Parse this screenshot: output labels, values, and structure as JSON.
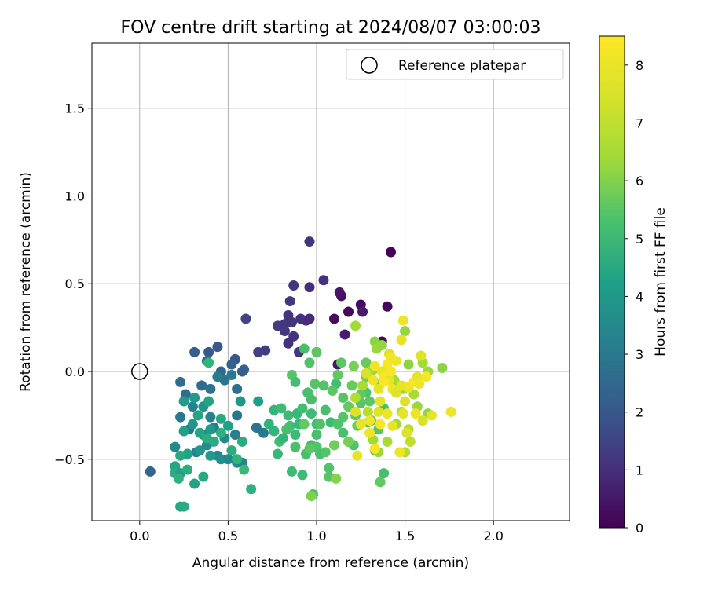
{
  "chart_data": {
    "type": "scatter",
    "title": "FOV centre drift starting at 2024/08/07 03:00:03",
    "xlabel": "Angular distance from reference (arcmin)",
    "ylabel": "Rotation from reference (arcmin)",
    "xlim": [
      -0.27,
      2.43
    ],
    "ylim": [
      -0.85,
      1.87
    ],
    "xticks": [
      0.0,
      0.5,
      1.0,
      1.5,
      2.0
    ],
    "yticks": [
      -0.5,
      0.0,
      0.5,
      1.0,
      1.5
    ],
    "xtick_labels": [
      "0.0",
      "0.5",
      "1.0",
      "1.5",
      "2.0"
    ],
    "ytick_labels": [
      "−0.5",
      "0.0",
      "0.5",
      "1.0",
      "1.5"
    ],
    "grid": true,
    "legend": {
      "position": "top-right",
      "entries": [
        "Reference platepar"
      ]
    },
    "reference_point": {
      "x": 0.0,
      "y": 0.0
    },
    "colorbar": {
      "label": "Hours from first FF file",
      "range": [
        0,
        8.5
      ],
      "ticks": [
        0,
        1,
        2,
        3,
        4,
        5,
        6,
        7,
        8
      ],
      "tick_labels": [
        "0",
        "1",
        "2",
        "3",
        "4",
        "5",
        "6",
        "7",
        "8"
      ],
      "colormap": "viridis"
    },
    "points": [
      [
        1.42,
        0.68,
        0.1
      ],
      [
        1.4,
        0.37,
        0.15
      ],
      [
        1.37,
        0.17,
        0.1
      ],
      [
        1.18,
        0.34,
        0.2
      ],
      [
        1.14,
        0.43,
        0.4
      ],
      [
        1.13,
        0.45,
        0.5
      ],
      [
        1.1,
        0.3,
        0.3
      ],
      [
        1.25,
        0.38,
        0.3
      ],
      [
        1.26,
        0.34,
        0.6
      ],
      [
        1.16,
        0.21,
        0.7
      ],
      [
        1.12,
        0.04,
        0.5
      ],
      [
        0.96,
        0.74,
        1.3
      ],
      [
        1.04,
        0.52,
        1.2
      ],
      [
        0.96,
        0.48,
        1.1
      ],
      [
        0.87,
        0.49,
        1.3
      ],
      [
        0.85,
        0.4,
        1.4
      ],
      [
        0.84,
        0.32,
        1.3
      ],
      [
        0.91,
        0.3,
        1.2
      ],
      [
        0.94,
        0.29,
        1.1
      ],
      [
        0.96,
        0.3,
        1.0
      ],
      [
        0.78,
        0.26,
        1.5
      ],
      [
        0.82,
        0.27,
        1.4
      ],
      [
        0.86,
        0.28,
        1.3
      ],
      [
        0.87,
        0.2,
        1.3
      ],
      [
        0.84,
        0.16,
        1.2
      ],
      [
        0.9,
        0.11,
        1.4
      ],
      [
        0.71,
        0.12,
        1.5
      ],
      [
        0.67,
        0.11,
        1.6
      ],
      [
        0.6,
        0.3,
        1.7
      ],
      [
        0.82,
        0.23,
        1.4
      ],
      [
        0.44,
        0.14,
        2.3
      ],
      [
        0.39,
        0.11,
        2.4
      ],
      [
        0.31,
        0.11,
        2.5
      ],
      [
        0.54,
        0.07,
        2.3
      ],
      [
        0.52,
        0.04,
        2.6
      ],
      [
        0.59,
        0.01,
        2.7
      ],
      [
        0.58,
        0.0,
        2.5
      ],
      [
        0.46,
        0.0,
        2.8
      ],
      [
        0.38,
        0.06,
        2.9
      ],
      [
        0.06,
        -0.57,
        2.8
      ],
      [
        0.26,
        -0.13,
        3.0
      ],
      [
        0.35,
        -0.08,
        3.0
      ],
      [
        0.4,
        -0.1,
        3.2
      ],
      [
        0.48,
        -0.05,
        3.3
      ],
      [
        0.55,
        -0.1,
        3.1
      ],
      [
        0.52,
        -0.02,
        3.5
      ],
      [
        0.44,
        -0.03,
        3.6
      ],
      [
        0.66,
        -0.32,
        3.2
      ],
      [
        0.7,
        -0.35,
        3.4
      ],
      [
        0.55,
        -0.25,
        3.3
      ],
      [
        0.3,
        -0.2,
        3.7
      ],
      [
        0.23,
        -0.26,
        3.4
      ],
      [
        0.4,
        -0.26,
        3.8
      ],
      [
        0.42,
        -0.32,
        3.6
      ],
      [
        0.36,
        -0.36,
        3.9
      ],
      [
        0.48,
        -0.38,
        4.0
      ],
      [
        0.54,
        -0.36,
        3.7
      ],
      [
        0.38,
        -0.42,
        4.1
      ],
      [
        0.32,
        -0.46,
        3.8
      ],
      [
        0.44,
        -0.48,
        3.9
      ],
      [
        0.46,
        -0.5,
        4.2
      ],
      [
        0.5,
        -0.5,
        4.0
      ],
      [
        0.55,
        -0.52,
        4.1
      ],
      [
        0.58,
        -0.52,
        3.9
      ],
      [
        0.2,
        -0.43,
        4.0
      ],
      [
        0.23,
        -0.06,
        3.0
      ],
      [
        0.28,
        -0.33,
        3.5
      ],
      [
        0.39,
        0.05,
        5.5
      ],
      [
        0.57,
        -0.17,
        4.5
      ],
      [
        0.67,
        -0.17,
        4.8
      ],
      [
        0.31,
        -0.15,
        4.6
      ],
      [
        0.36,
        -0.2,
        4.4
      ],
      [
        0.25,
        -0.17,
        4.7
      ],
      [
        0.39,
        -0.17,
        4.9
      ],
      [
        0.33,
        -0.25,
        5.0
      ],
      [
        0.3,
        -0.3,
        4.5
      ],
      [
        0.25,
        -0.34,
        4.8
      ],
      [
        0.34,
        -0.35,
        5.0
      ],
      [
        0.4,
        -0.33,
        4.6
      ],
      [
        0.5,
        -0.31,
        4.8
      ],
      [
        0.46,
        -0.27,
        5.1
      ],
      [
        0.4,
        -0.48,
        4.6
      ],
      [
        0.34,
        -0.45,
        4.4
      ],
      [
        0.27,
        -0.47,
        4.9
      ],
      [
        0.23,
        -0.48,
        5.1
      ],
      [
        0.2,
        -0.54,
        5.0
      ],
      [
        0.2,
        -0.58,
        5.2
      ],
      [
        0.23,
        -0.58,
        4.8
      ],
      [
        0.27,
        -0.56,
        5.3
      ],
      [
        0.31,
        -0.64,
        4.9
      ],
      [
        0.36,
        -0.6,
        5.1
      ],
      [
        0.23,
        -0.77,
        5.0
      ],
      [
        0.25,
        -0.77,
        5.2
      ],
      [
        0.22,
        -0.61,
        5.4
      ],
      [
        0.42,
        -0.4,
        5.2
      ],
      [
        0.38,
        -0.38,
        5.3
      ],
      [
        0.46,
        -0.35,
        5.4
      ],
      [
        0.52,
        -0.45,
        5.3
      ],
      [
        0.55,
        -0.5,
        5.5
      ],
      [
        0.63,
        -0.67,
        5.4
      ],
      [
        0.58,
        -0.4,
        5.2
      ],
      [
        0.59,
        -0.56,
        5.7
      ],
      [
        0.76,
        -0.22,
        5.6
      ],
      [
        0.84,
        -0.25,
        5.8
      ],
      [
        0.89,
        -0.24,
        5.7
      ],
      [
        0.85,
        -0.31,
        5.9
      ],
      [
        0.83,
        -0.33,
        6.0
      ],
      [
        0.88,
        -0.36,
        5.8
      ],
      [
        0.76,
        -0.34,
        5.6
      ],
      [
        0.78,
        -0.47,
        5.7
      ],
      [
        0.79,
        -0.4,
        5.9
      ],
      [
        0.86,
        -0.57,
        5.8
      ],
      [
        0.88,
        -0.43,
        6.0
      ],
      [
        0.92,
        -0.21,
        5.9
      ],
      [
        0.9,
        -0.3,
        5.7
      ],
      [
        0.97,
        -0.24,
        5.8
      ],
      [
        1.0,
        -0.3,
        5.9
      ],
      [
        1.05,
        -0.22,
        6.0
      ],
      [
        1.08,
        -0.29,
        5.8
      ],
      [
        0.94,
        -0.47,
        6.0
      ],
      [
        0.97,
        -0.42,
        5.9
      ],
      [
        1.0,
        -0.43,
        6.1
      ],
      [
        1.02,
        -0.47,
        6.0
      ],
      [
        1.05,
        -0.46,
        6.2
      ],
      [
        1.07,
        -0.55,
        6.1
      ],
      [
        1.0,
        -0.36,
        6.0
      ],
      [
        0.98,
        -0.7,
        6.0
      ],
      [
        0.92,
        -0.59,
        5.8
      ],
      [
        0.97,
        -0.16,
        6.0
      ],
      [
        1.11,
        -0.07,
        5.9
      ],
      [
        1.12,
        -0.3,
        6.1
      ],
      [
        1.15,
        -0.35,
        6.0
      ],
      [
        1.18,
        -0.4,
        6.2
      ],
      [
        1.21,
        -0.42,
        6.1
      ],
      [
        1.07,
        -0.6,
        6.2
      ],
      [
        0.96,
        -0.44,
        6.3
      ],
      [
        0.93,
        -0.3,
        6.4
      ],
      [
        0.95,
        -0.12,
        6.3
      ],
      [
        0.99,
        -0.07,
        6.2
      ],
      [
        1.04,
        -0.08,
        6.1
      ],
      [
        1.09,
        -0.11,
        6.3
      ],
      [
        1.15,
        -0.15,
        6.2
      ],
      [
        1.18,
        -0.2,
        6.4
      ],
      [
        1.22,
        -0.25,
        6.3
      ],
      [
        1.25,
        -0.18,
        6.2
      ],
      [
        1.28,
        -0.12,
        6.1
      ],
      [
        1.31,
        -0.28,
        6.3
      ],
      [
        1.35,
        -0.33,
        6.2
      ],
      [
        1.38,
        -0.21,
        6.0
      ],
      [
        1.33,
        -0.45,
        6.1
      ],
      [
        1.36,
        -0.63,
        6.4
      ],
      [
        1.38,
        -0.58,
        6.0
      ],
      [
        1.2,
        -0.08,
        6.5
      ],
      [
        1.28,
        -0.03,
        6.6
      ],
      [
        1.21,
        0.03,
        6.7
      ],
      [
        1.12,
        -0.02,
        6.4
      ],
      [
        1.28,
        0.05,
        6.5
      ],
      [
        1.36,
        -0.07,
        6.6
      ],
      [
        1.23,
        -0.31,
        6.5
      ],
      [
        1.18,
        -0.4,
        6.7
      ],
      [
        1.1,
        -0.42,
        6.6
      ],
      [
        0.97,
        -0.71,
        6.8
      ],
      [
        1.11,
        -0.61,
        6.9
      ],
      [
        0.93,
        0.13,
        6.0
      ],
      [
        0.96,
        0.05,
        6.1
      ],
      [
        0.86,
        -0.02,
        6.2
      ],
      [
        0.88,
        -0.06,
        5.9
      ],
      [
        1.0,
        0.11,
        6.3
      ],
      [
        0.95,
        -0.12,
        6.0
      ],
      [
        0.8,
        -0.21,
        5.8
      ],
      [
        0.73,
        -0.3,
        5.5
      ],
      [
        0.81,
        -0.38,
        5.6
      ],
      [
        1.15,
        -0.26,
        6.2
      ],
      [
        1.02,
        -0.3,
        6.1
      ],
      [
        1.14,
        0.05,
        6.3
      ],
      [
        1.25,
        -0.13,
        6.4
      ],
      [
        1.3,
        -0.17,
        6.3
      ],
      [
        1.29,
        -0.29,
        6.1
      ],
      [
        1.33,
        0.17,
        7.0
      ],
      [
        1.34,
        0.13,
        7.2
      ],
      [
        1.22,
        0.26,
        7.3
      ],
      [
        1.37,
        0.15,
        7.1
      ],
      [
        1.32,
        0.01,
        7.2
      ],
      [
        1.4,
        -0.02,
        7.3
      ],
      [
        1.44,
        -0.05,
        7.4
      ],
      [
        1.46,
        -0.09,
        7.2
      ],
      [
        1.49,
        -0.1,
        7.3
      ],
      [
        1.5,
        0.23,
        7.1
      ],
      [
        1.52,
        0.04,
        7.0
      ],
      [
        1.55,
        -0.13,
        7.4
      ],
      [
        1.57,
        -0.2,
        7.2
      ],
      [
        1.6,
        0.05,
        7.3
      ],
      [
        1.63,
        0.0,
        7.2
      ],
      [
        1.63,
        -0.24,
        7.1
      ],
      [
        1.71,
        0.02,
        7.0
      ],
      [
        1.32,
        -0.39,
        7.3
      ],
      [
        1.35,
        -0.46,
        7.2
      ],
      [
        1.4,
        -0.4,
        7.4
      ],
      [
        1.45,
        -0.3,
        7.3
      ],
      [
        1.48,
        -0.23,
        7.5
      ],
      [
        1.52,
        -0.33,
        7.6
      ],
      [
        1.53,
        -0.4,
        7.7
      ],
      [
        1.5,
        -0.46,
        7.5
      ],
      [
        1.26,
        -0.08,
        7.4
      ],
      [
        1.22,
        -0.15,
        7.5
      ],
      [
        1.29,
        -0.23,
        7.6
      ],
      [
        1.49,
        0.29,
        8.3
      ],
      [
        1.48,
        0.18,
        8.2
      ],
      [
        1.41,
        0.1,
        8.1
      ],
      [
        1.42,
        0.08,
        8.3
      ],
      [
        1.4,
        0.04,
        8.4
      ],
      [
        1.37,
        0.0,
        8.2
      ],
      [
        1.33,
        0.03,
        8.3
      ],
      [
        1.28,
        -0.01,
        8.0
      ],
      [
        1.38,
        -0.03,
        8.4
      ],
      [
        1.41,
        -0.05,
        8.2
      ],
      [
        1.43,
        -0.1,
        8.3
      ],
      [
        1.45,
        -0.12,
        8.1
      ],
      [
        1.48,
        -0.08,
        8.2
      ],
      [
        1.52,
        -0.09,
        8.3
      ],
      [
        1.55,
        -0.06,
        8.4
      ],
      [
        1.57,
        -0.03,
        8.2
      ],
      [
        1.59,
        0.09,
        8.1
      ],
      [
        1.58,
        -0.07,
        8.3
      ],
      [
        1.36,
        -0.17,
        8.2
      ],
      [
        1.35,
        -0.23,
        8.1
      ],
      [
        1.4,
        -0.24,
        8.3
      ],
      [
        1.43,
        -0.31,
        8.2
      ],
      [
        1.36,
        -0.3,
        8.4
      ],
      [
        1.3,
        -0.28,
        8.3
      ],
      [
        1.25,
        -0.3,
        8.2
      ],
      [
        1.22,
        -0.23,
        8.1
      ],
      [
        1.3,
        -0.35,
        8.3
      ],
      [
        1.23,
        -0.48,
        8.2
      ],
      [
        1.33,
        -0.44,
        8.4
      ],
      [
        1.47,
        -0.46,
        8.3
      ],
      [
        1.49,
        -0.24,
        8.2
      ],
      [
        1.51,
        -0.35,
        8.1
      ],
      [
        1.56,
        -0.24,
        8.3
      ],
      [
        1.6,
        -0.28,
        8.0
      ],
      [
        1.76,
        -0.23,
        8.3
      ],
      [
        1.65,
        -0.25,
        8.2
      ],
      [
        1.62,
        -0.03,
        8.4
      ],
      [
        1.45,
        0.06,
        8.3
      ],
      [
        1.42,
        0.0,
        8.4
      ],
      [
        1.5,
        -0.17,
        8.1
      ],
      [
        1.38,
        -0.06,
        8.5
      ],
      [
        1.35,
        -0.1,
        8.2
      ],
      [
        1.32,
        -0.05,
        8.3
      ]
    ]
  }
}
